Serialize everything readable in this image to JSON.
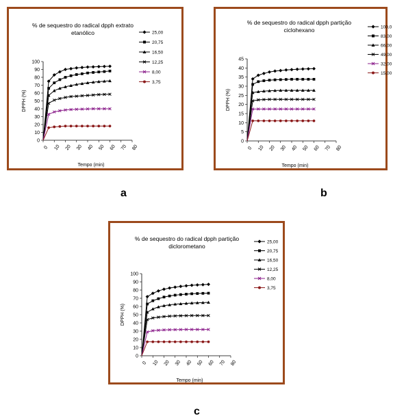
{
  "captions": [
    "a",
    "b",
    "c"
  ],
  "chart_data": [
    {
      "type": "line",
      "title_lines": [
        "% de sequestro do radical dpph extrato",
        "etanólico"
      ],
      "xlabel": "Tempo (min)",
      "ylabel": "DPPH (%)",
      "xlim": [
        0,
        80
      ],
      "ylim": [
        0,
        100
      ],
      "yticks": [
        0,
        10,
        20,
        30,
        40,
        50,
        60,
        70,
        80,
        90,
        100
      ],
      "xticks": [
        0,
        10,
        20,
        30,
        40,
        50,
        60,
        70,
        80
      ],
      "x": [
        0,
        5,
        10,
        15,
        20,
        25,
        30,
        35,
        40,
        45,
        50,
        55,
        60
      ],
      "series": [
        {
          "name": "25,00",
          "marker": "diamond",
          "color": "#000000",
          "values": [
            0,
            75,
            83,
            87,
            90,
            91,
            92,
            92.5,
            93,
            93.3,
            93.6,
            93.8,
            94
          ]
        },
        {
          "name": "20,75",
          "marker": "square",
          "color": "#000000",
          "values": [
            0,
            66,
            73,
            77,
            80,
            82,
            83.5,
            84.5,
            85.5,
            86.2,
            86.8,
            87.3,
            88
          ]
        },
        {
          "name": "16,50",
          "marker": "triangle",
          "color": "#000000",
          "values": [
            0,
            57,
            63,
            66,
            68,
            69.5,
            71,
            72,
            73,
            73.8,
            74.5,
            75,
            75.5
          ]
        },
        {
          "name": "12,25",
          "marker": "x",
          "color": "#000000",
          "values": [
            0,
            47,
            51,
            53,
            54.5,
            55.5,
            56,
            56.5,
            57,
            57.5,
            58,
            58.3,
            58.5
          ]
        },
        {
          "name": "8,00",
          "marker": "x",
          "color": "#8b1f8b",
          "values": [
            0,
            33,
            36,
            37.5,
            38.5,
            39,
            39.3,
            39.6,
            39.8,
            40,
            40,
            40,
            40
          ]
        },
        {
          "name": "3,75",
          "marker": "circle",
          "color": "#8b1a1a",
          "values": [
            0,
            16,
            17,
            17.5,
            18,
            18,
            18,
            18,
            18,
            18,
            18,
            18,
            18
          ]
        }
      ]
    },
    {
      "type": "line",
      "title_lines": [
        "% de sequestro do radical dpph partição",
        "ciclohexano"
      ],
      "xlabel": "Tempo (min)",
      "ylabel": "DPPH (%)",
      "xlim": [
        0,
        80
      ],
      "ylim": [
        0,
        45
      ],
      "yticks": [
        0,
        5,
        10,
        15,
        20,
        25,
        30,
        35,
        40,
        45
      ],
      "xticks": [
        0,
        10,
        20,
        30,
        40,
        50,
        60,
        70,
        80
      ],
      "x": [
        0,
        5,
        10,
        15,
        20,
        25,
        30,
        35,
        40,
        45,
        50,
        55,
        60
      ],
      "series": [
        {
          "name": "100,0",
          "marker": "diamond",
          "color": "#000000",
          "values": [
            0,
            34,
            36,
            37,
            37.8,
            38.3,
            38.6,
            38.9,
            39.1,
            39.3,
            39.4,
            39.5,
            39.6
          ]
        },
        {
          "name": "83,00",
          "marker": "square",
          "color": "#000000",
          "values": [
            0,
            31,
            32.5,
            33,
            33.3,
            33.5,
            33.6,
            33.7,
            33.8,
            33.8,
            33.8,
            33.8,
            33.8
          ]
        },
        {
          "name": "66,00",
          "marker": "triangle",
          "color": "#000000",
          "values": [
            0,
            26.5,
            27,
            27.3,
            27.5,
            27.6,
            27.7,
            27.7,
            27.7,
            27.7,
            27.7,
            27.7,
            27.7
          ]
        },
        {
          "name": "49,00",
          "marker": "x",
          "color": "#000000",
          "values": [
            0,
            22,
            22.5,
            22.7,
            22.8,
            22.8,
            22.8,
            22.8,
            22.8,
            22.8,
            22.8,
            22.8,
            22.8
          ]
        },
        {
          "name": "32,00",
          "marker": "x",
          "color": "#8b1f8b",
          "values": [
            0,
            17.5,
            17.5,
            17.5,
            17.5,
            17.5,
            17.5,
            17.5,
            17.5,
            17.5,
            17.5,
            17.5,
            17.5
          ]
        },
        {
          "name": "15,00",
          "marker": "circle",
          "color": "#8b1a1a",
          "values": [
            0,
            11,
            11,
            11,
            11,
            11,
            11,
            11,
            11,
            11,
            11,
            11,
            11
          ]
        }
      ]
    },
    {
      "type": "line",
      "title_lines": [
        "% de sequestro do radical dpph partição",
        "diclorometano"
      ],
      "xlabel": "Tempo (min)",
      "ylabel": "DPPH (%)",
      "xlim": [
        0,
        80
      ],
      "ylim": [
        0,
        100
      ],
      "yticks": [
        0,
        10,
        20,
        30,
        40,
        50,
        60,
        70,
        80,
        90,
        100
      ],
      "xticks": [
        0,
        10,
        20,
        30,
        40,
        50,
        60,
        70,
        80
      ],
      "x": [
        0,
        5,
        10,
        15,
        20,
        25,
        30,
        35,
        40,
        45,
        50,
        55,
        60
      ],
      "series": [
        {
          "name": "25,00",
          "marker": "diamond",
          "color": "#000000",
          "values": [
            0,
            72,
            76,
            79,
            81,
            82.5,
            83.5,
            84.5,
            85.2,
            85.8,
            86.3,
            86.6,
            87
          ]
        },
        {
          "name": "20,75",
          "marker": "square",
          "color": "#000000",
          "values": [
            0,
            63,
            67,
            69.5,
            71.5,
            72.8,
            73.8,
            74.5,
            75,
            75.5,
            75.8,
            76,
            76.2
          ]
        },
        {
          "name": "16,50",
          "marker": "triangle",
          "color": "#000000",
          "values": [
            0,
            53,
            57,
            59.5,
            61,
            62,
            62.8,
            63.3,
            63.8,
            64.2,
            64.5,
            64.7,
            65
          ]
        },
        {
          "name": "12,25",
          "marker": "x",
          "color": "#000000",
          "values": [
            0,
            44,
            46,
            47,
            47.7,
            48.2,
            48.5,
            48.7,
            48.9,
            49,
            49,
            49,
            49
          ]
        },
        {
          "name": "8,00",
          "marker": "x",
          "color": "#8b1f8b",
          "values": [
            0,
            29,
            30.5,
            31,
            31.5,
            31.7,
            31.8,
            31.9,
            32,
            32,
            32,
            32,
            32
          ]
        },
        {
          "name": "3,75",
          "marker": "circle",
          "color": "#8b1a1a",
          "values": [
            0,
            17,
            17,
            17,
            17,
            17,
            17,
            17,
            17,
            17,
            17,
            17,
            17
          ]
        }
      ]
    }
  ]
}
